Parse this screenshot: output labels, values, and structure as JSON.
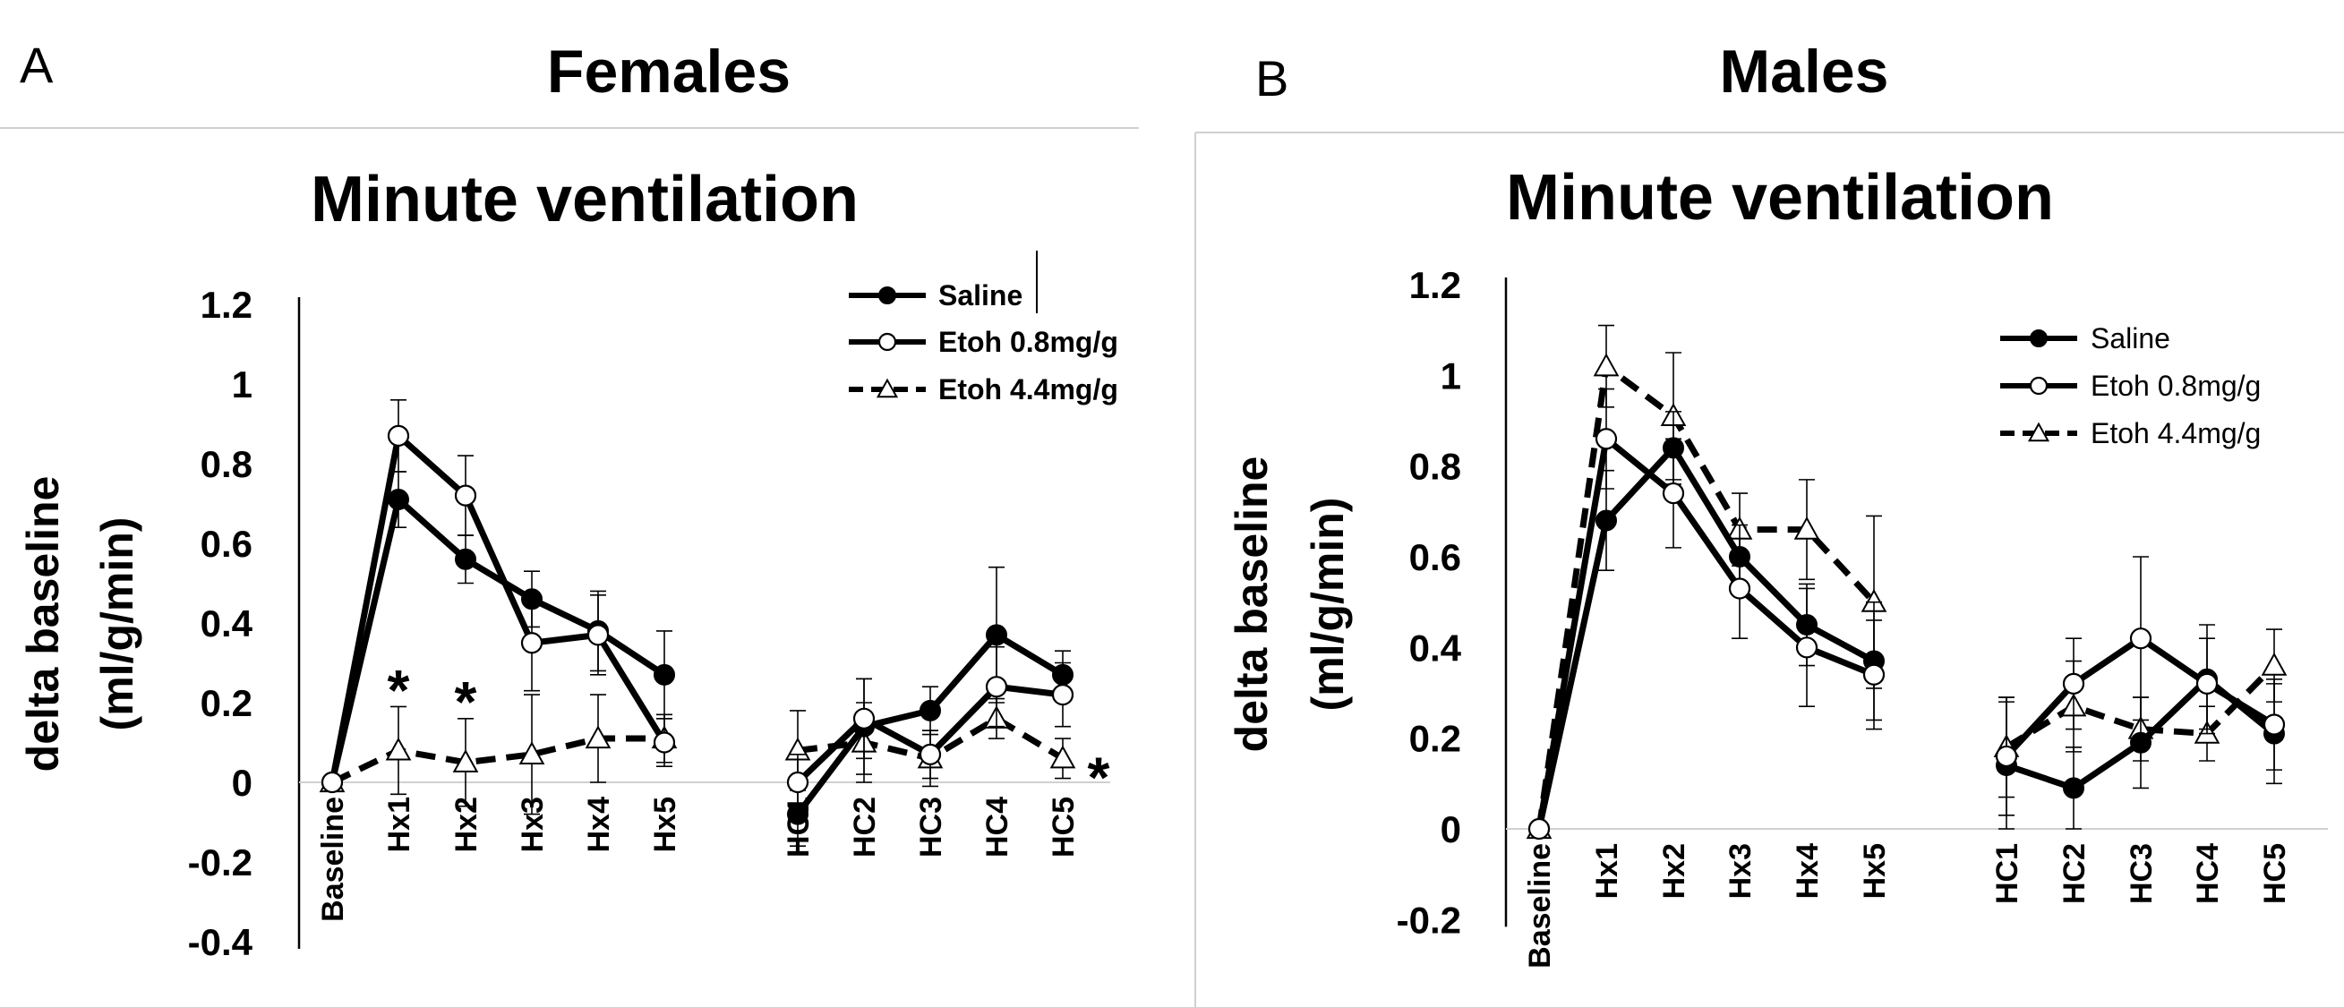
{
  "chart_data": [
    {
      "type": "line",
      "panel_letter": "A",
      "header": "Females",
      "title": "Minute ventilation",
      "ylabel": "delta baseline (ml/g/min)",
      "ylabel_lines": [
        "delta baseline",
        "(ml/g/min)"
      ],
      "xlabel": "",
      "ylim": [
        -0.4,
        1.2
      ],
      "yticks": [
        -0.4,
        -0.2,
        0,
        0.2,
        0.4,
        0.6,
        0.8,
        1,
        1.2
      ],
      "ytick_labels": [
        "-0.4",
        "-0.2",
        "0",
        "0.2",
        "0.4",
        "0.6",
        "0.8",
        "1",
        "1.2"
      ],
      "categories": [
        "Baseline",
        "Hx1",
        "Hx2",
        "Hx3",
        "Hx4",
        "Hx5",
        "HC1",
        "HC2",
        "HC3",
        "HC4",
        "HC5"
      ],
      "grid": false,
      "legend_position": "top-right",
      "series": [
        {
          "name": "Saline",
          "marker": "filled-circle",
          "line": "solid",
          "segments": [
            [
              0,
              0.71,
              0.56,
              0.46,
              0.38,
              0.27
            ],
            [
              -0.08,
              0.14,
              0.18,
              0.37,
              0.27
            ]
          ],
          "error_segments": [
            [
              0,
              0.07,
              0.06,
              0.07,
              0.1,
              0.11
            ],
            [
              0.08,
              0.12,
              0.06,
              0.17,
              0.06
            ]
          ]
        },
        {
          "name": "Etoh 0.8mg/g",
          "marker": "open-circle",
          "line": "solid",
          "segments": [
            [
              0,
              0.87,
              0.72,
              0.35,
              0.37,
              0.1
            ],
            [
              0,
              0.16,
              0.07,
              0.24,
              0.22
            ]
          ],
          "error_segments": [
            [
              0,
              0.09,
              0.1,
              0.12,
              0.1,
              0.06
            ],
            [
              0.07,
              0.1,
              0.06,
              0.1,
              0.08
            ]
          ]
        },
        {
          "name": "Etoh 4.4mg/g",
          "marker": "open-triangle",
          "line": "dashed",
          "segments": [
            [
              0,
              0.08,
              0.05,
              0.07,
              0.11,
              0.11
            ],
            [
              0.08,
              0.1,
              0.06,
              0.16,
              0.06
            ]
          ],
          "error_segments": [
            [
              0,
              0.11,
              0.11,
              0.15,
              0.11,
              0.06
            ],
            [
              0.1,
              0.1,
              0.07,
              0.05,
              0.05
            ]
          ]
        }
      ],
      "annotations": [
        {
          "text": "*",
          "category": "Hx1",
          "y": 0.25
        },
        {
          "text": "*",
          "category": "Hx2",
          "y": 0.22
        },
        {
          "text": "*",
          "category": "HC5",
          "y": 0.03,
          "offset": "right"
        }
      ]
    },
    {
      "type": "line",
      "panel_letter": "B",
      "header": "Males",
      "title": "Minute ventilation",
      "ylabel": "delta baseline (ml/g/min)",
      "ylabel_lines": [
        "delta baseline",
        "(ml/g/min)"
      ],
      "xlabel": "",
      "ylim": [
        -0.2,
        1.2
      ],
      "yticks": [
        -0.2,
        0,
        0.2,
        0.4,
        0.6,
        0.8,
        1,
        1.2
      ],
      "ytick_labels": [
        "-0.2",
        "0",
        "0.2",
        "0.4",
        "0.6",
        "0.8",
        "1",
        "1.2"
      ],
      "categories": [
        "Baseline",
        "Hx1",
        "Hx2",
        "Hx3",
        "Hx4",
        "Hx5",
        "HC1",
        "HC2",
        "HC3",
        "HC4",
        "HC5"
      ],
      "grid": false,
      "legend_position": "top-right",
      "series": [
        {
          "name": "Saline",
          "marker": "filled-circle",
          "line": "solid",
          "segments": [
            [
              0,
              0.68,
              0.84,
              0.6,
              0.45,
              0.37
            ],
            [
              0.14,
              0.09,
              0.19,
              0.33,
              0.21
            ]
          ],
          "error_segments": [
            [
              0,
              0.11,
              0.08,
              0.07,
              0.09,
              0.13
            ],
            [
              0.14,
              0.09,
              0.1,
              0.12,
              0.11
            ]
          ]
        },
        {
          "name": "Etoh 0.8mg/g",
          "marker": "open-circle",
          "line": "solid",
          "segments": [
            [
              0,
              0.86,
              0.74,
              0.53,
              0.4,
              0.34
            ],
            [
              0.16,
              0.32,
              0.42,
              0.32,
              0.23
            ]
          ],
          "error_segments": [
            [
              0,
              0.11,
              0.12,
              0.11,
              0.13,
              0.12
            ],
            [
              0.13,
              0.1,
              0.18,
              0.1,
              0.1
            ]
          ]
        },
        {
          "name": "Etoh 4.4mg/g",
          "marker": "open-triangle",
          "line": "dashed",
          "segments": [
            [
              0,
              1.02,
              0.91,
              0.66,
              0.66,
              0.5
            ],
            [
              0.18,
              0.27,
              0.22,
              0.21,
              0.36
            ]
          ],
          "error_segments": [
            [
              0,
              0.09,
              0.14,
              0.08,
              0.11,
              0.19
            ],
            [
              0.11,
              0.1,
              0.07,
              0.06,
              0.08
            ]
          ]
        }
      ]
    }
  ]
}
